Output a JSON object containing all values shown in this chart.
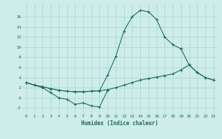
{
  "xlabel": "Humidex (Indice chaleur)",
  "xlim": [
    -0.5,
    23.5
  ],
  "ylim": [
    -3.2,
    18.5
  ],
  "yticks": [
    -2,
    0,
    2,
    4,
    6,
    8,
    10,
    12,
    14,
    16
  ],
  "xticks": [
    0,
    1,
    2,
    3,
    4,
    5,
    6,
    7,
    8,
    9,
    10,
    11,
    12,
    13,
    14,
    15,
    16,
    17,
    18,
    19,
    20,
    21,
    22,
    23
  ],
  "background_color": "#cdecea",
  "grid_color": "#a8d4d0",
  "line_color": "#1c6b5a",
  "line1_x": [
    0,
    1,
    2,
    3,
    4,
    5,
    6,
    7,
    8,
    9,
    10
  ],
  "line1_y": [
    3.0,
    2.5,
    2.0,
    1.0,
    0.0,
    -0.3,
    -1.3,
    -1.0,
    -1.6,
    -1.8,
    1.5
  ],
  "line2_x": [
    0,
    1,
    2,
    3,
    4,
    5,
    6,
    7,
    8,
    9,
    10,
    11,
    12,
    13,
    14,
    15,
    16,
    17,
    18,
    19,
    20,
    21,
    22,
    23
  ],
  "line2_y": [
    3.0,
    2.5,
    2.2,
    1.8,
    1.5,
    1.3,
    1.2,
    1.2,
    1.3,
    1.4,
    1.6,
    2.0,
    2.5,
    3.0,
    3.5,
    3.8,
    4.1,
    4.4,
    4.7,
    5.5,
    6.5,
    5.0,
    4.0,
    3.5
  ],
  "line3_x": [
    0,
    1,
    2,
    3,
    4,
    5,
    6,
    7,
    8,
    9,
    10,
    11,
    12,
    13,
    14,
    15,
    16,
    17,
    18,
    19
  ],
  "line3_y": [
    3.0,
    2.5,
    2.2,
    1.8,
    1.5,
    1.3,
    1.2,
    1.2,
    1.3,
    1.4,
    4.5,
    8.2,
    13.2,
    16.0,
    17.3,
    17.0,
    15.5,
    12.0,
    10.5,
    9.7
  ],
  "line4_x": [
    19,
    20,
    21,
    22,
    23
  ],
  "line4_y": [
    9.7,
    6.5,
    5.0,
    4.0,
    3.5
  ]
}
